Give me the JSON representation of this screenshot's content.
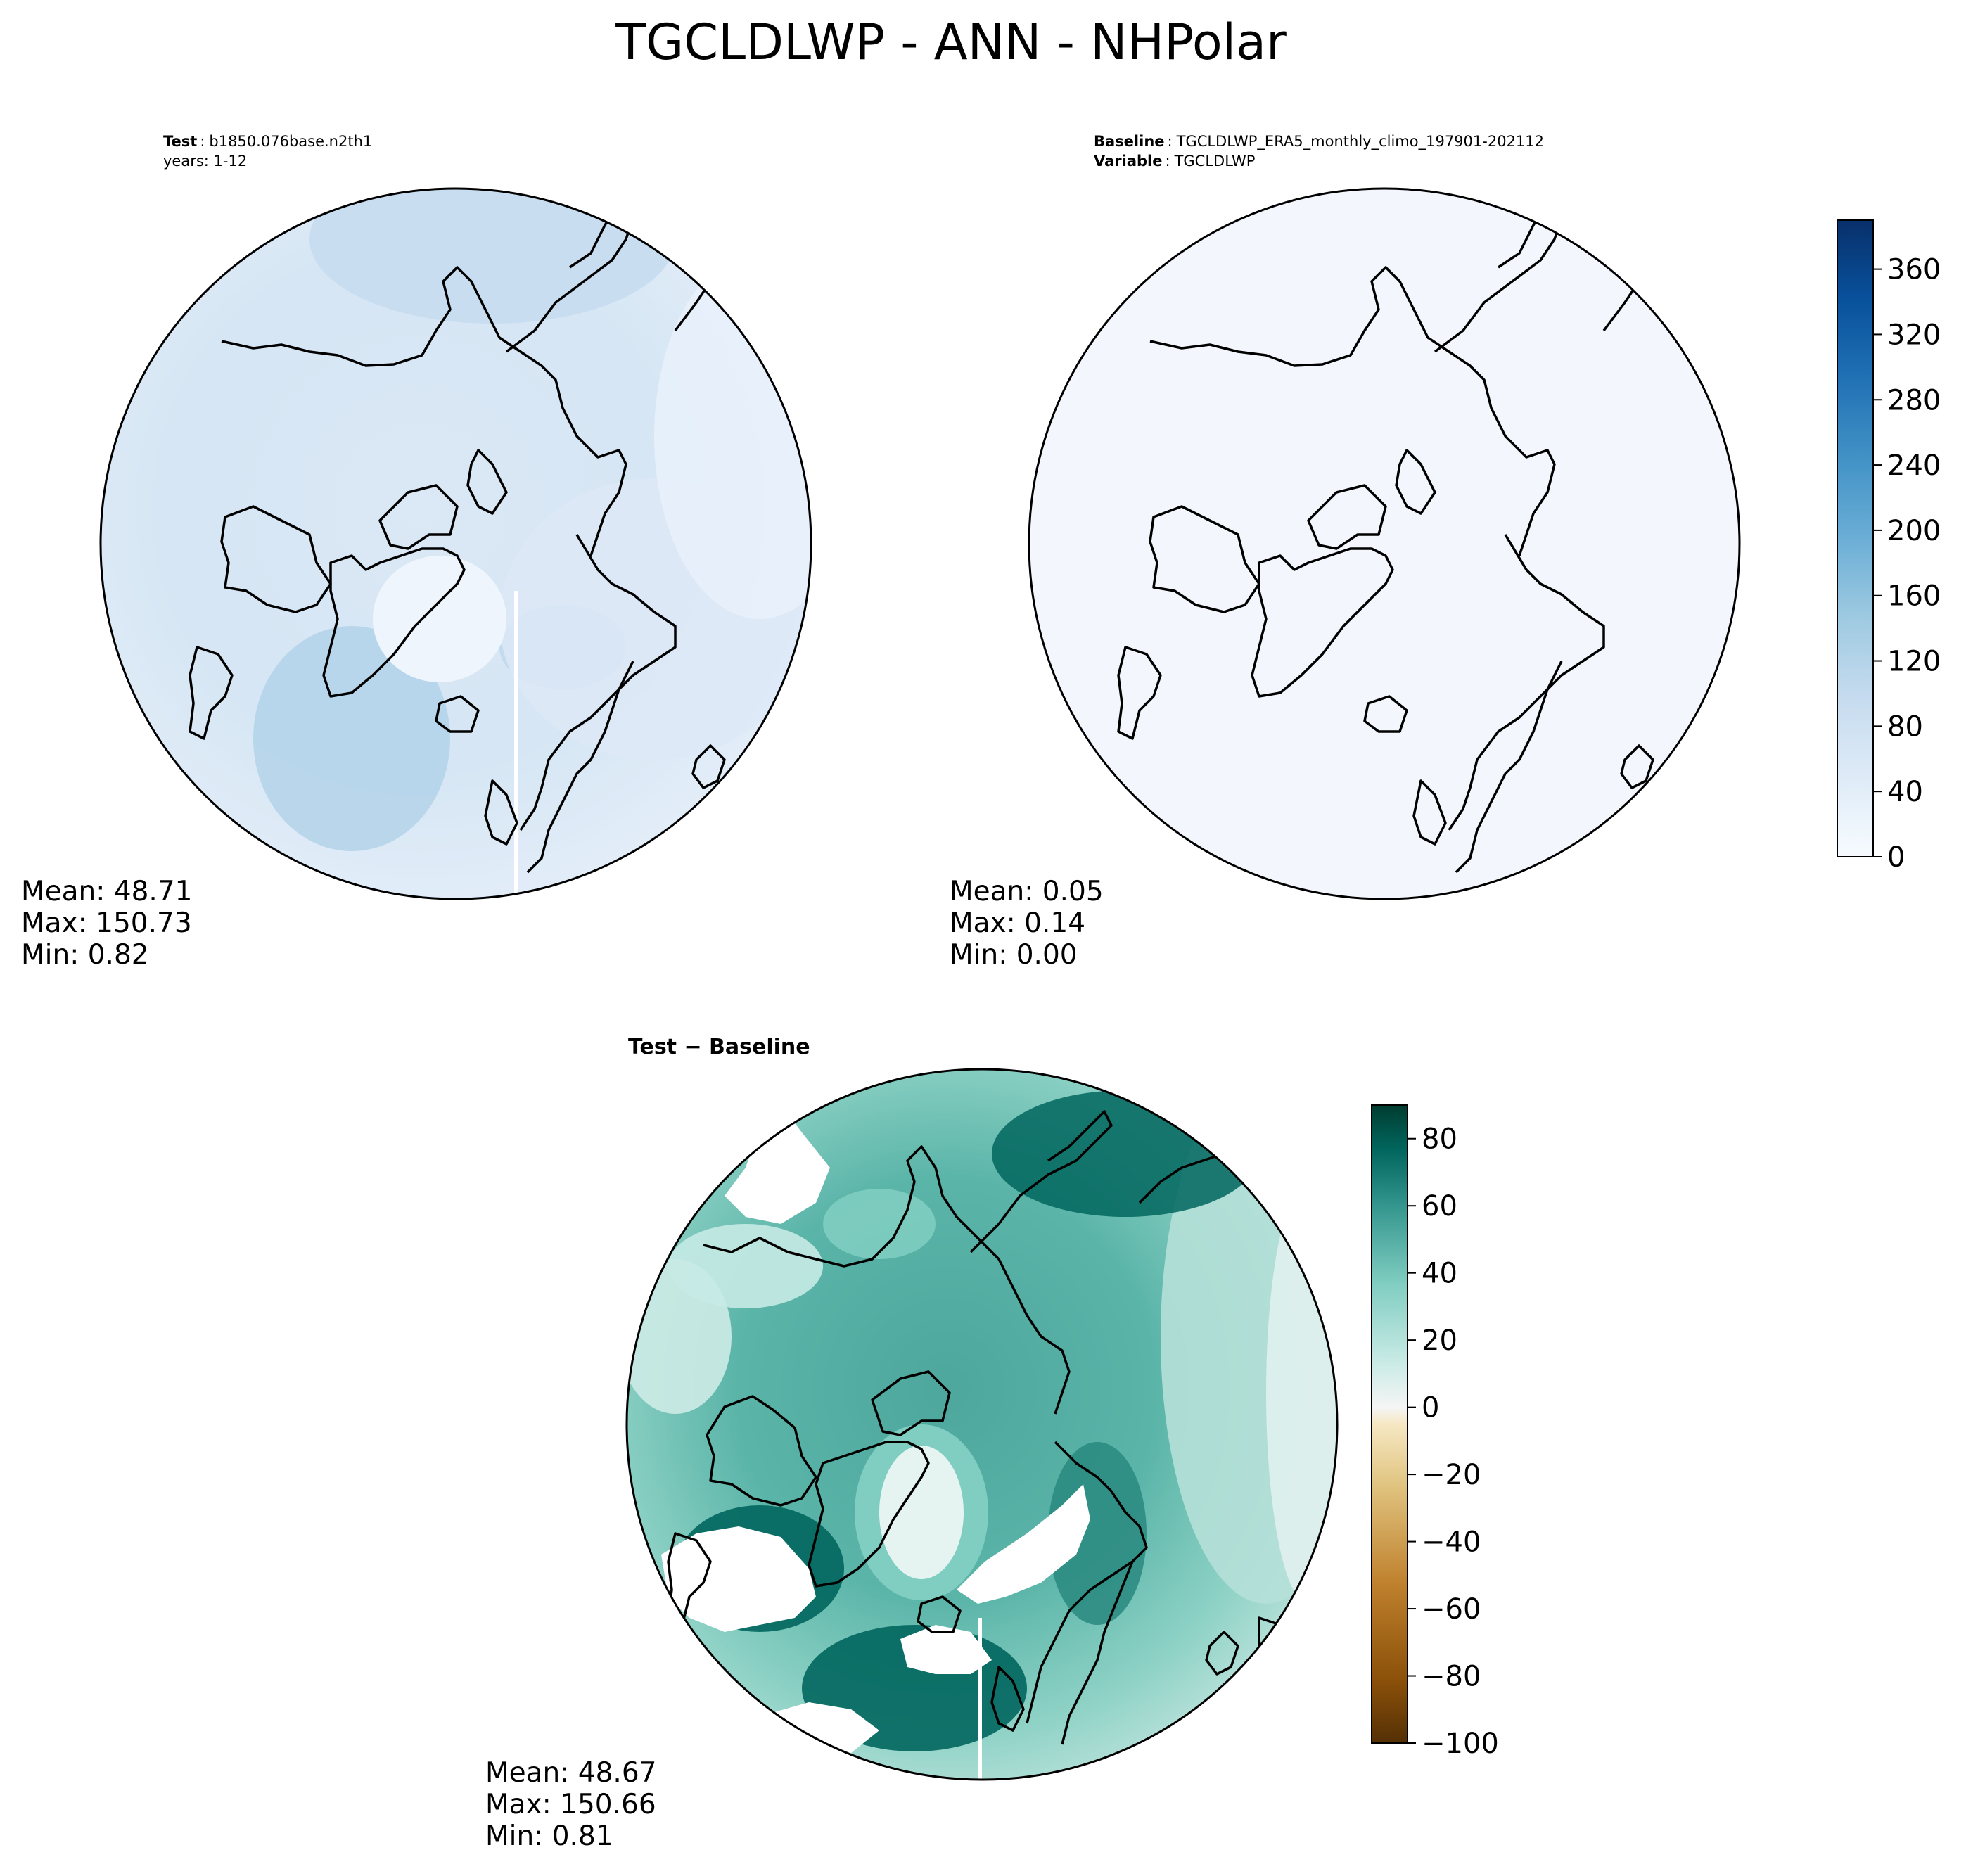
{
  "figure": {
    "title": "TGCLDLWP - ANN - NHPolar"
  },
  "panels": {
    "test": {
      "label_bold": "Test",
      "label_sep": ":",
      "label_value": "b1850.076base.n2th1",
      "years": "years: 1-12",
      "stats": {
        "mean": "Mean: 48.71",
        "max": "Max: 150.73",
        "min": "Min:  0.82"
      }
    },
    "baseline": {
      "label_bold": "Baseline",
      "label_sep": ":",
      "label_value": "TGCLDLWP_ERA5_monthly_climo_197901-202112",
      "variable_bold": "Variable",
      "variable_sep": ":",
      "variable_value": "TGCLDLWP",
      "stats": {
        "mean": "Mean:  0.05",
        "max": "Max:  0.14",
        "min": "Min:  0.00"
      }
    },
    "diff": {
      "title": "Test − Baseline",
      "stats": {
        "mean": "Mean: 48.67",
        "max": "Max: 150.66",
        "min": "Min:  0.81"
      }
    }
  },
  "colorbars": {
    "main": {
      "colormap": "Blues",
      "ticks": [
        "0",
        "40",
        "80",
        "120",
        "160",
        "200",
        "240",
        "280",
        "320",
        "360"
      ],
      "range": [
        0,
        390
      ],
      "low_color": "#f7fbff",
      "high_color": "#08306b"
    },
    "diff": {
      "colormap": "BrBG",
      "ticks": [
        "−100",
        "−80",
        "−60",
        "−40",
        "−20",
        "0",
        "20",
        "40",
        "60",
        "80"
      ],
      "range": [
        -100,
        90
      ],
      "low_color": "#543005",
      "high_color": "#003c30"
    }
  },
  "chart_data": [
    {
      "type": "heatmap",
      "title": "Test : b1850.076base.n2th1",
      "subtitle": "years: 1-12",
      "projection": "North Polar Stereographic",
      "colormap": "Blues",
      "stats": {
        "mean": 48.71,
        "max": 150.73,
        "min": 0.82
      }
    },
    {
      "type": "heatmap",
      "title": "Baseline : TGCLDLWP_ERA5_monthly_climo_197901-202112",
      "subtitle": "Variable : TGCLDLWP",
      "projection": "North Polar Stereographic",
      "colormap": "Blues",
      "stats": {
        "mean": 0.05,
        "max": 0.14,
        "min": 0.0
      }
    },
    {
      "type": "heatmap",
      "title": "Test − Baseline",
      "projection": "North Polar Stereographic",
      "colormap": "BrBG",
      "stats": {
        "mean": 48.67,
        "max": 150.66,
        "min": 0.81
      }
    }
  ]
}
